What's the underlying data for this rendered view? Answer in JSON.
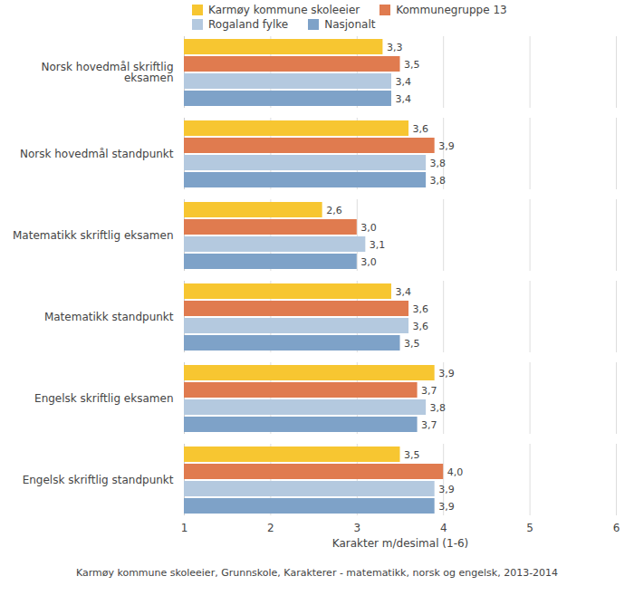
{
  "chart_data": {
    "type": "bar",
    "orientation": "horizontal",
    "categories": [
      "Norsk hovedmål skriftlig\neksamen",
      "Norsk hovedmål standpunkt",
      "Matematikk skriftlig eksamen",
      "Matematikk standpunkt",
      "Engelsk skriftlig eksamen",
      "Engelsk skriftlig standpunkt"
    ],
    "series": [
      {
        "name": "Karmøy kommune skoleeier",
        "color": "#f7c631",
        "values": [
          3.3,
          3.6,
          2.6,
          3.4,
          3.9,
          3.5
        ],
        "value_labels": [
          "3,3",
          "3,6",
          "2,6",
          "3,4",
          "3,9",
          "3,5"
        ]
      },
      {
        "name": "Kommunegruppe 13",
        "color": "#e07b4f",
        "values": [
          3.5,
          3.9,
          3.0,
          3.6,
          3.7,
          4.0
        ],
        "value_labels": [
          "3,5",
          "3,9",
          "3,0",
          "3,6",
          "3,7",
          "4,0"
        ]
      },
      {
        "name": "Rogaland fylke",
        "color": "#b4c9df",
        "values": [
          3.4,
          3.8,
          3.1,
          3.6,
          3.8,
          3.9
        ],
        "value_labels": [
          "3,4",
          "3,8",
          "3,1",
          "3,6",
          "3,8",
          "3,9"
        ]
      },
      {
        "name": "Nasjonalt",
        "color": "#7ea2c8",
        "values": [
          3.4,
          3.8,
          3.0,
          3.5,
          3.7,
          3.9
        ],
        "value_labels": [
          "3,4",
          "3,8",
          "3,0",
          "3,5",
          "3,7",
          "3,9"
        ]
      }
    ],
    "x_label": "Karakter m/desimal (1-6)",
    "xlim": [
      1,
      6
    ],
    "xticks": [
      1,
      2,
      3,
      4,
      5,
      6
    ],
    "caption": "Karmøy kommune skoleeier, Grunnskole, Karakterer - matematikk, norsk og engelsk, 2013-2014",
    "data_labels": true,
    "grid": true,
    "legend": "top"
  }
}
